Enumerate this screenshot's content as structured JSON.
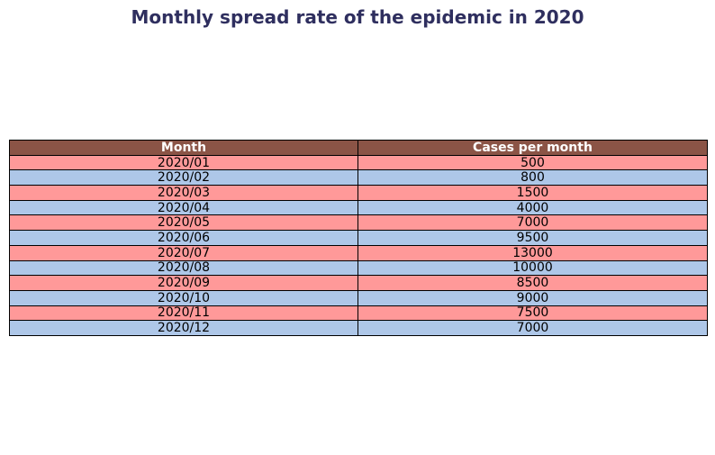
{
  "chart_data": {
    "type": "table",
    "title": "Monthly spread rate of the epidemic in 2020",
    "columns": [
      "Month",
      "Cases per month"
    ],
    "rows": [
      [
        "2020/01",
        "500"
      ],
      [
        "2020/02",
        "800"
      ],
      [
        "2020/03",
        "1500"
      ],
      [
        "2020/04",
        "4000"
      ],
      [
        "2020/05",
        "7000"
      ],
      [
        "2020/06",
        "9500"
      ],
      [
        "2020/07",
        "13000"
      ],
      [
        "2020/08",
        "10000"
      ],
      [
        "2020/09",
        "8500"
      ],
      [
        "2020/10",
        "9000"
      ],
      [
        "2020/11",
        "7500"
      ],
      [
        "2020/12",
        "7000"
      ]
    ]
  },
  "colors": {
    "title": "#2f2f5f",
    "header_bg": "#8b5446",
    "header_text": "#ffffff",
    "row_odd_bg": "#ff9999",
    "row_even_bg": "#aec7e8",
    "border": "#000000"
  }
}
